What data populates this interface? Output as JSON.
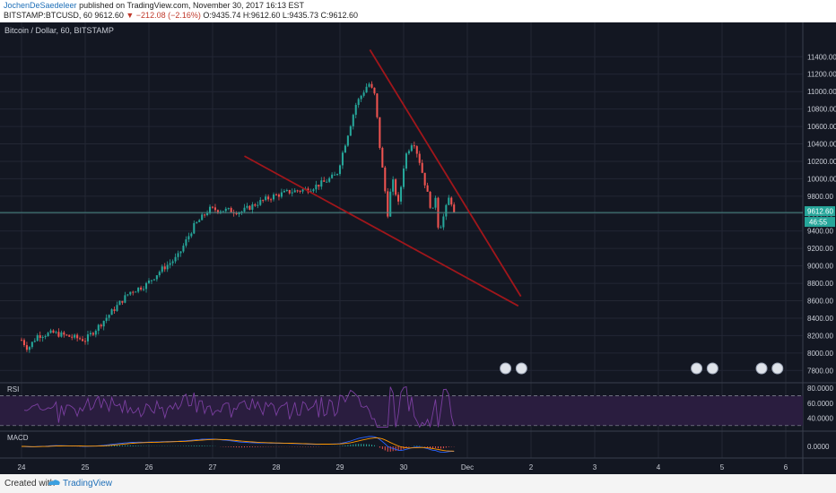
{
  "header": {
    "author": "JochenDeSaedeleer",
    "published": " published on TradingView.com, November 30, 2017 16:13 EST",
    "symbol_line_prefix": "BITSTAMP:BTCUSD, 60  9612.60 ",
    "change": "▼ −212.08 (−2.16%)",
    "ohlc": " O:9435.74 H:9612.60 L:9435.73 C:9612.60"
  },
  "chart_title": "Bitcoin / Dollar, 60, BITSTAMP",
  "footer": {
    "created_with": "Created with",
    "brand": "TradingView"
  },
  "colors": {
    "background": "#131722",
    "grid": "#232734",
    "up": "#26a69a",
    "down": "#ef5350",
    "trendline": "#a0161b",
    "rsi": "#7b3fa0",
    "rsi_band": "#2a1d3f",
    "macd": "#2962ff",
    "signal": "#ff9800"
  },
  "chart_data": {
    "type": "candlestick",
    "title": "Bitcoin / Dollar, 60, BITSTAMP",
    "x_ticks": [
      "24",
      "25",
      "26",
      "27",
      "28",
      "29",
      "30",
      "Dec",
      "2",
      "3",
      "4",
      "5",
      "6"
    ],
    "y_ticks": [
      "11400.00",
      "11200.00",
      "11000.00",
      "10800.00",
      "10600.00",
      "10400.00",
      "10200.00",
      "10000.00",
      "9800.00",
      "9600.00",
      "9400.00",
      "9200.00",
      "9000.00",
      "8800.00",
      "8600.00",
      "8400.00",
      "8200.00",
      "8000.00",
      "7800.00"
    ],
    "ylim": [
      7700,
      11650
    ],
    "last_price": "9612.60",
    "countdown": "46:55",
    "keypoints": [
      {
        "x": 0,
        "y": 8150
      },
      {
        "x": 0.1,
        "y": 8050
      },
      {
        "x": 0.25,
        "y": 8200
      },
      {
        "x": 0.5,
        "y": 8230
      },
      {
        "x": 0.75,
        "y": 8190
      },
      {
        "x": 1.0,
        "y": 8150
      },
      {
        "x": 1.2,
        "y": 8300
      },
      {
        "x": 1.45,
        "y": 8500
      },
      {
        "x": 1.7,
        "y": 8700
      },
      {
        "x": 1.95,
        "y": 8780
      },
      {
        "x": 2.2,
        "y": 8960
      },
      {
        "x": 2.45,
        "y": 9100
      },
      {
        "x": 2.7,
        "y": 9450
      },
      {
        "x": 2.95,
        "y": 9650
      },
      {
        "x": 3.2,
        "y": 9640
      },
      {
        "x": 3.45,
        "y": 9620
      },
      {
        "x": 3.7,
        "y": 9720
      },
      {
        "x": 3.95,
        "y": 9800
      },
      {
        "x": 4.2,
        "y": 9850
      },
      {
        "x": 4.5,
        "y": 9880
      },
      {
        "x": 4.75,
        "y": 9960
      },
      {
        "x": 4.95,
        "y": 10050
      },
      {
        "x": 5.05,
        "y": 10320
      },
      {
        "x": 5.25,
        "y": 10850
      },
      {
        "x": 5.45,
        "y": 11100
      },
      {
        "x": 5.55,
        "y": 10950
      },
      {
        "x": 5.62,
        "y": 10400
      },
      {
        "x": 5.75,
        "y": 9600
      },
      {
        "x": 5.82,
        "y": 10000
      },
      {
        "x": 5.92,
        "y": 9700
      },
      {
        "x": 6.02,
        "y": 10250
      },
      {
        "x": 6.15,
        "y": 10450
      },
      {
        "x": 6.25,
        "y": 10200
      },
      {
        "x": 6.35,
        "y": 9900
      },
      {
        "x": 6.45,
        "y": 9600
      },
      {
        "x": 6.5,
        "y": 9800
      },
      {
        "x": 6.55,
        "y": 9400
      },
      {
        "x": 6.62,
        "y": 9550
      },
      {
        "x": 6.72,
        "y": 9800
      },
      {
        "x": 6.8,
        "y": 9612.6
      }
    ],
    "trendlines": [
      {
        "x1": 5.47,
        "y1": 11480,
        "x2": 7.84,
        "y2": 8650
      },
      {
        "x1": 3.5,
        "y1": 10260,
        "x2": 7.8,
        "y2": 8540
      }
    ],
    "event_markers_x": [
      7.6,
      7.85,
      10.6,
      10.85,
      11.62,
      11.87
    ],
    "rsi": {
      "label": "RSI",
      "ticks": [
        "80.0000",
        "60.0000",
        "40.0000"
      ],
      "ylim": [
        25,
        85
      ],
      "bands": [
        70,
        30
      ]
    },
    "macd": {
      "label": "MACD",
      "ticks": [
        "0.0000"
      ]
    }
  }
}
